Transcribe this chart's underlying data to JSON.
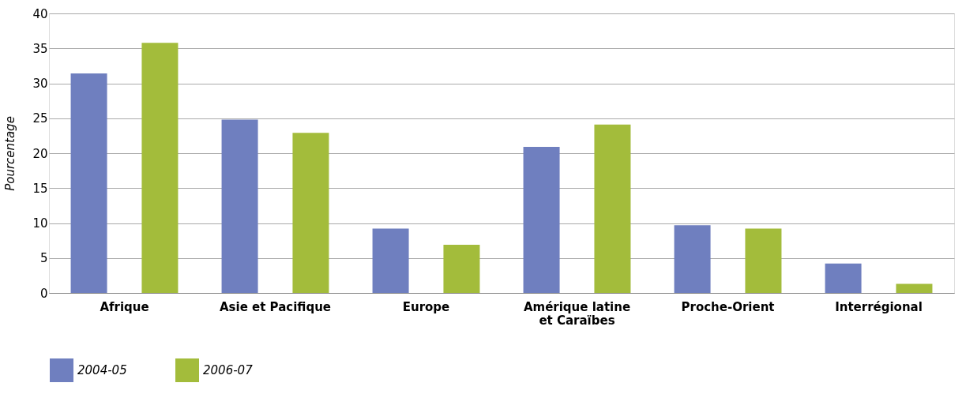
{
  "chart_data": {
    "type": "bar",
    "ylabel": "Pourcentage",
    "categories": [
      "Afrique",
      "Asie et Pacifique",
      "Europe",
      "Amérique latine\net Caraïbes",
      "Proche-Orient",
      "Interrégional"
    ],
    "series": [
      {
        "name": "2004-05",
        "color": "#6f7fbf",
        "values": [
          31.4,
          24.8,
          9.2,
          20.9,
          9.7,
          4.2
        ]
      },
      {
        "name": "2006-07",
        "color": "#a3bc3b",
        "values": [
          35.8,
          22.9,
          6.9,
          24.1,
          9.2,
          1.3
        ]
      }
    ],
    "ylim": [
      0,
      40
    ],
    "yticks": [
      0,
      5,
      10,
      15,
      20,
      25,
      30,
      35,
      40
    ],
    "grid": "y",
    "legend": "bottom left"
  }
}
